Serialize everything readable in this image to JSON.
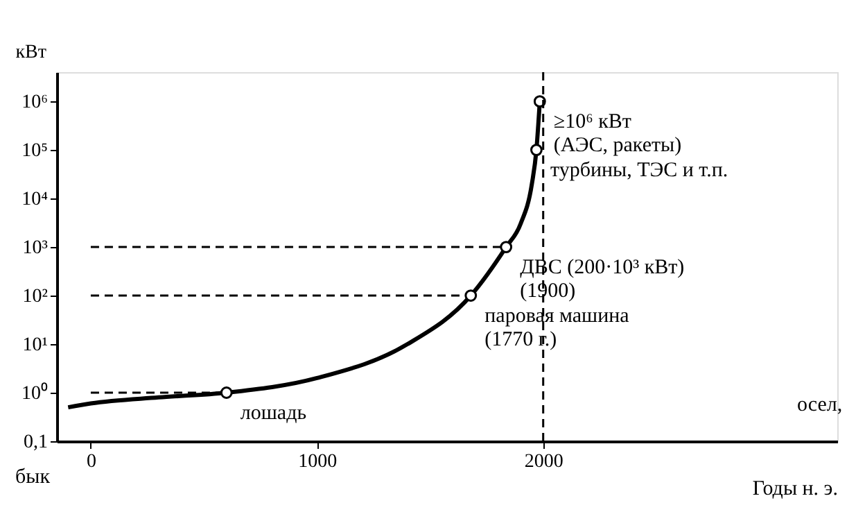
{
  "chart_data": {
    "type": "line",
    "xlabel": "Годы н. э.",
    "ylabel": "кВт",
    "log": true,
    "xlim": [
      -150,
      3300
    ],
    "xticks": [
      0,
      1000,
      2000
    ],
    "ylim": [
      0.1,
      4000000
    ],
    "yticks": [
      {
        "value": 0.1,
        "label": "0,1"
      },
      {
        "value": 1,
        "label": "10⁰"
      },
      {
        "value": 10,
        "label": "10¹"
      },
      {
        "value": 100,
        "label": "10²"
      },
      {
        "value": 1000,
        "label": "10³"
      },
      {
        "value": 10000,
        "label": "10⁴"
      },
      {
        "value": 100000,
        "label": "10⁵"
      },
      {
        "value": 1000000,
        "label": "10⁶"
      }
    ],
    "grid": false,
    "series": [
      {
        "color": "#000000",
        "line_style": "solid",
        "x": [
          -100,
          0,
          300,
          600,
          1000,
          1400,
          1680,
          1836,
          1900,
          1950,
          1970,
          1985
        ],
        "values": [
          0.5,
          0.6,
          0.8,
          1,
          2,
          10,
          100,
          1000,
          3000,
          20000,
          100000,
          1000000
        ]
      },
      {
        "type": "line",
        "color": "#000000",
        "line_style": "dashed",
        "x": [
          0,
          600
        ],
        "values": [
          1,
          1
        ]
      },
      {
        "type": "line",
        "color": "#000000",
        "line_style": "dashed",
        "x": [
          0,
          1680
        ],
        "values": [
          100,
          100
        ]
      },
      {
        "type": "line",
        "color": "#000000",
        "line_style": "dashed",
        "x": [
          0,
          1836
        ],
        "values": [
          1000,
          1000
        ]
      },
      {
        "type": "scatter",
        "color": "#000000",
        "marker": "circle",
        "x": [
          600,
          1680,
          1836,
          1970,
          1985
        ],
        "values": [
          1,
          100,
          1000,
          100000,
          1000000
        ]
      }
    ],
    "ref_lines": [
      {
        "axis": "x",
        "value": 2000,
        "line_style": "dashed",
        "color": "#000000"
      }
    ],
    "annotations": [
      {
        "text": "лошадь",
        "x": 600,
        "y": 1
      },
      {
        "text": "паровая машина\n(1770 г.)",
        "x": 1680,
        "y": 100
      },
      {
        "text": "ДВС (200·10³ кВт)\n(1900)",
        "x": 1836,
        "y": 1000
      },
      {
        "text": "турбины, ТЭС и т.п.",
        "x": 1970,
        "y": 100000
      },
      {
        "text": "≥10⁶ кВт\n(АЭС, ракеты)",
        "x": 1985,
        "y": 1000000
      },
      "бык",
      "осел,"
    ]
  }
}
